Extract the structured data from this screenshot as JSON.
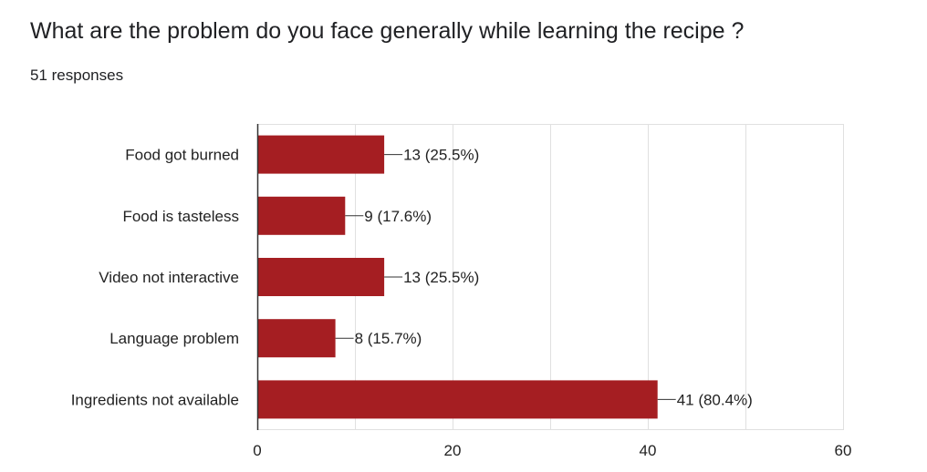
{
  "question": {
    "title": "What are the problem do you face generally while learning the recipe ?",
    "responses": "51 responses"
  },
  "chart_data": {
    "type": "bar",
    "orientation": "horizontal",
    "categories": [
      "Food got burned",
      "Food is tasteless",
      "Video not interactive",
      "Language problem",
      "Ingredients not available"
    ],
    "values": [
      13,
      9,
      13,
      8,
      41
    ],
    "data_labels": [
      "13 (25.5%)",
      "9 (17.6%)",
      "13 (25.5%)",
      "8 (15.7%)",
      "41 (80.4%)"
    ],
    "xlim": [
      0,
      60
    ],
    "x_ticks": [
      0,
      20,
      40,
      60
    ],
    "x_tick_labels": [
      "0",
      "20",
      "40",
      "60"
    ],
    "grid": true,
    "bar_color": "#a51e22",
    "grid_color": "#e0e0e0",
    "axis_color": "#333333"
  }
}
